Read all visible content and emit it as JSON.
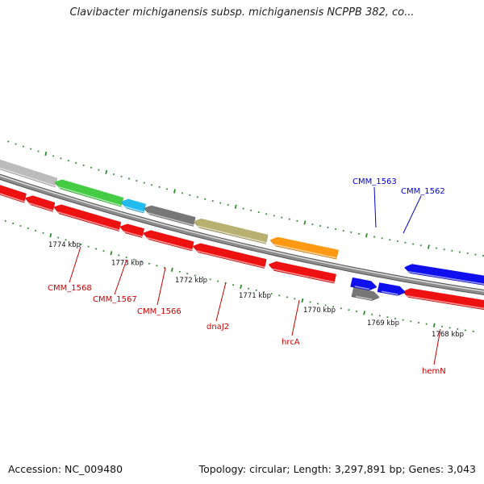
{
  "header": {
    "title": "Clavibacter michiganensis subsp. michiganensis NCPPB 382, co..."
  },
  "footer": {
    "accession": "Accession: NC_009480",
    "summary": "Topology: circular; Length: 3,297,891 bp; Genes: 3,043"
  },
  "colors": {
    "backbone": "#8c8c8c",
    "tick": "#2e8b2e",
    "label_red": "#cc0000",
    "label_blue": "#0000cc",
    "cds_red": "#ee1111",
    "blue": "#1010ee",
    "gray": "#777777",
    "lightgray": "#bbbbbb",
    "green": "#44cc44",
    "cyan": "#22bbee",
    "olive": "#b8b070",
    "orange": "#ff9911"
  },
  "scale": {
    "kbp_labels": [
      "1774 kbp",
      "1773 kbp",
      "1772 kbp",
      "1771 kbp",
      "1770 kbp",
      "1769 kbp",
      "1768 kbp"
    ]
  },
  "features": [
    {
      "color": "red",
      "dir": "left"
    },
    {
      "color": "red",
      "dir": "left"
    },
    {
      "color": "red",
      "dir": "left"
    },
    {
      "color": "red",
      "dir": "left"
    },
    {
      "color": "red",
      "dir": "left"
    },
    {
      "color": "red",
      "dir": "left"
    },
    {
      "color": "red",
      "dir": "left"
    },
    {
      "color": "red",
      "dir": "left"
    },
    {
      "color": "gray",
      "dir": "right"
    },
    {
      "color": "blue",
      "dir": "right"
    },
    {
      "color": "blue",
      "dir": "right"
    },
    {
      "color": "lightgray",
      "dir": "left"
    },
    {
      "color": "green",
      "dir": "left"
    },
    {
      "color": "cyan",
      "dir": "left"
    },
    {
      "color": "gray",
      "dir": "left"
    },
    {
      "color": "olive",
      "dir": "left"
    },
    {
      "color": "orange",
      "dir": "left"
    },
    {
      "color": "blue",
      "dir": "left"
    }
  ],
  "gene_labels": [
    {
      "text": "CMM_1568",
      "color": "red"
    },
    {
      "text": "CMM_1567",
      "color": "red"
    },
    {
      "text": "CMM_1566",
      "color": "red"
    },
    {
      "text": "dnaJ2",
      "color": "red"
    },
    {
      "text": "hrcA",
      "color": "red"
    },
    {
      "text": "hemN",
      "color": "red"
    },
    {
      "text": "CMM_1563",
      "color": "blue"
    },
    {
      "text": "CMM_1562",
      "color": "blue"
    }
  ]
}
